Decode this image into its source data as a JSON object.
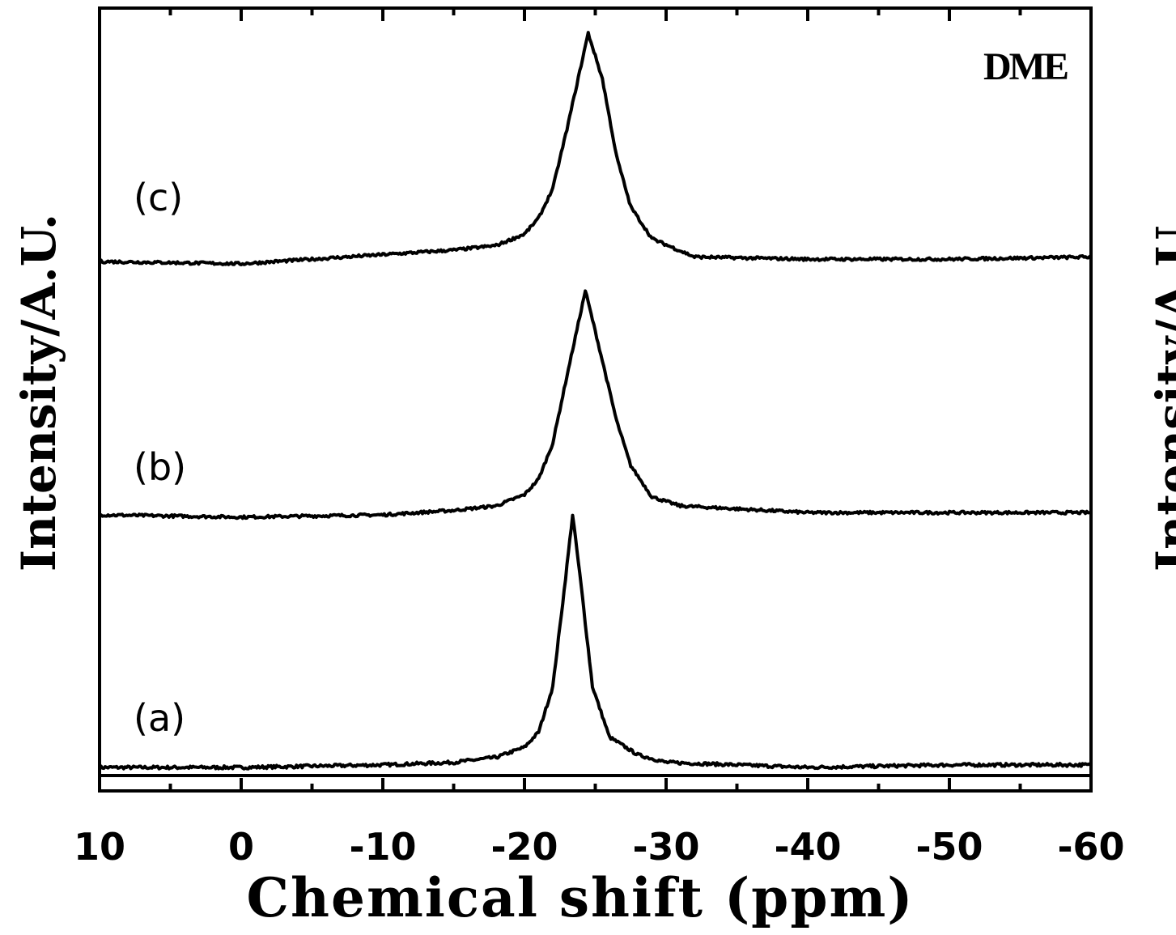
{
  "chart_data": {
    "type": "line",
    "panel_label": "DME",
    "xlabel": "Chemical shift (ppm)",
    "ylabel": "Intensity/A.U.",
    "clipped_ylabel": "Intensity/A.U.",
    "xlim": [
      10,
      -60
    ],
    "x_ticks": [
      10,
      0,
      -10,
      -20,
      -30,
      -40,
      -50,
      -60
    ],
    "x_tick_labels": [
      "10",
      "0",
      "-10",
      "-20",
      "-30",
      "-40",
      "-50",
      "-60"
    ],
    "grid": false,
    "legend": "none",
    "series": [
      {
        "name": "(a)",
        "peak_x": -23.4,
        "points": [
          [
            10,
            0.0
          ],
          [
            0,
            0.0
          ],
          [
            -10,
            0.01
          ],
          [
            -15,
            0.02
          ],
          [
            -18,
            0.04
          ],
          [
            -20,
            0.08
          ],
          [
            -21,
            0.14
          ],
          [
            -22,
            0.32
          ],
          [
            -22.8,
            0.7
          ],
          [
            -23.4,
            1.0
          ],
          [
            -24,
            0.72
          ],
          [
            -24.8,
            0.32
          ],
          [
            -26,
            0.12
          ],
          [
            -28,
            0.05
          ],
          [
            -30,
            0.02
          ],
          [
            -40,
            0.0
          ],
          [
            -50,
            0.01
          ],
          [
            -60,
            0.01
          ]
        ]
      },
      {
        "name": "(b)",
        "peak_x": -24.3,
        "points": [
          [
            10,
            0.0
          ],
          [
            0,
            -0.01
          ],
          [
            -10,
            0.0
          ],
          [
            -15,
            0.02
          ],
          [
            -18,
            0.04
          ],
          [
            -20,
            0.09
          ],
          [
            -21,
            0.16
          ],
          [
            -22,
            0.32
          ],
          [
            -23,
            0.62
          ],
          [
            -24.3,
            1.0
          ],
          [
            -25.3,
            0.74
          ],
          [
            -26.5,
            0.42
          ],
          [
            -27.5,
            0.22
          ],
          [
            -29,
            0.08
          ],
          [
            -31,
            0.04
          ],
          [
            -40,
            0.01
          ],
          [
            -50,
            0.01
          ],
          [
            -60,
            0.01
          ]
        ]
      },
      {
        "name": "(c)",
        "peak_x": -24.5,
        "points": [
          [
            10,
            0.0
          ],
          [
            0,
            -0.01
          ],
          [
            -10,
            0.03
          ],
          [
            -15,
            0.05
          ],
          [
            -18,
            0.07
          ],
          [
            -20,
            0.12
          ],
          [
            -21,
            0.19
          ],
          [
            -22,
            0.32
          ],
          [
            -23,
            0.58
          ],
          [
            -24.5,
            1.0
          ],
          [
            -25.5,
            0.8
          ],
          [
            -26.5,
            0.46
          ],
          [
            -27.5,
            0.24
          ],
          [
            -29,
            0.1
          ],
          [
            -32,
            0.02
          ],
          [
            -40,
            0.01
          ],
          [
            -50,
            0.01
          ],
          [
            -60,
            0.02
          ]
        ]
      }
    ]
  }
}
